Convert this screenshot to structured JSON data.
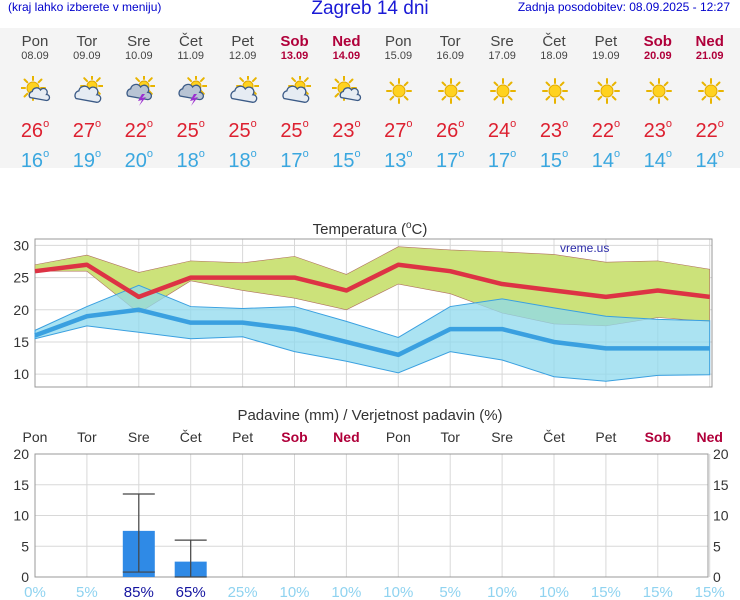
{
  "header": {
    "note": "(kraj lahko izberete v meniju)",
    "title": "Zagreb 14 dni",
    "updated": "Zadnja posodobitev: 08.09.2025 - 12:27"
  },
  "degree_symbol": "o",
  "days": [
    {
      "name": "Pon",
      "date": "08.09",
      "weekend": false,
      "icon": "sun-cloud-icon",
      "tmax": "26",
      "tmin": "16"
    },
    {
      "name": "Tor",
      "date": "09.09",
      "weekend": false,
      "icon": "cloud-sun-icon",
      "tmax": "27",
      "tmin": "19"
    },
    {
      "name": "Sre",
      "date": "10.09",
      "weekend": false,
      "icon": "thunderstorm-icon",
      "tmax": "22",
      "tmin": "20"
    },
    {
      "name": "Čet",
      "date": "11.09",
      "weekend": false,
      "icon": "thunderstorm-icon",
      "tmax": "25",
      "tmin": "18"
    },
    {
      "name": "Pet",
      "date": "12.09",
      "weekend": false,
      "icon": "cloud-sun-icon",
      "tmax": "25",
      "tmin": "18"
    },
    {
      "name": "Sob",
      "date": "13.09",
      "weekend": true,
      "icon": "cloud-sun-icon",
      "tmax": "25",
      "tmin": "17"
    },
    {
      "name": "Ned",
      "date": "14.09",
      "weekend": true,
      "icon": "sun-cloud-icon",
      "tmax": "23",
      "tmin": "15"
    },
    {
      "name": "Pon",
      "date": "15.09",
      "weekend": false,
      "icon": "sun-icon",
      "tmax": "27",
      "tmin": "13"
    },
    {
      "name": "Tor",
      "date": "16.09",
      "weekend": false,
      "icon": "sun-icon",
      "tmax": "26",
      "tmin": "17"
    },
    {
      "name": "Sre",
      "date": "17.09",
      "weekend": false,
      "icon": "sun-icon",
      "tmax": "24",
      "tmin": "17"
    },
    {
      "name": "Čet",
      "date": "18.09",
      "weekend": false,
      "icon": "sun-icon",
      "tmax": "23",
      "tmin": "15"
    },
    {
      "name": "Pet",
      "date": "19.09",
      "weekend": false,
      "icon": "sun-icon",
      "tmax": "22",
      "tmin": "14"
    },
    {
      "name": "Sob",
      "date": "20.09",
      "weekend": true,
      "icon": "sun-icon",
      "tmax": "23",
      "tmin": "14"
    },
    {
      "name": "Ned",
      "date": "21.09",
      "weekend": true,
      "icon": "sun-icon",
      "tmax": "22",
      "tmin": "14"
    }
  ],
  "colors": {
    "max_line": "#dd3344",
    "min_line": "#3aa0e0",
    "max_band": "#cce27a",
    "min_band": "#8fd9ee",
    "overlap": "#88cf8a",
    "bar": "#2f8ae6",
    "prob": "#1414a0",
    "prob_faint": "#8fd3f0",
    "weekend": "#b0003a"
  },
  "chart_data": [
    {
      "type": "line",
      "title": "Temperatura (",
      "title_unit": "C)",
      "watermark": "vreme.us",
      "ylim": [
        8,
        31
      ],
      "yticks": [
        10,
        15,
        20,
        25,
        30
      ],
      "series": [
        {
          "key": "max",
          "values": [
            26,
            27,
            22,
            25,
            25,
            25,
            23,
            27,
            26,
            24,
            23,
            22,
            23,
            22
          ],
          "band_upper": [
            27,
            28.5,
            25.8,
            27.6,
            27.3,
            28.3,
            25.5,
            29.8,
            29.3,
            29,
            28.6,
            27.4,
            27.6,
            26.3
          ],
          "band_lower": [
            26,
            26,
            19.5,
            24.5,
            23,
            21.8,
            20,
            24,
            22.5,
            19.5,
            17.8,
            17.5,
            18.8,
            18.2
          ]
        },
        {
          "key": "min",
          "values": [
            16,
            19,
            20,
            18,
            18,
            17,
            15,
            13,
            17,
            17,
            15,
            14,
            14,
            14
          ],
          "band_upper": [
            16.8,
            20.5,
            23.8,
            20.5,
            20.2,
            20.5,
            18.2,
            15.7,
            20.5,
            21.7,
            20.3,
            19,
            18.5,
            18.3
          ],
          "band_lower": [
            15.5,
            17.5,
            16.5,
            15.5,
            15.8,
            13.5,
            12,
            10.2,
            13.5,
            12.2,
            9.6,
            8.9,
            9.8,
            9.9
          ]
        }
      ]
    },
    {
      "type": "bar",
      "title": "Padavine (mm) / Verjetnost padavin (%)",
      "ylim": [
        0,
        20
      ],
      "yticks": [
        0,
        5,
        10,
        15,
        20
      ],
      "categories": [
        "Pon",
        "Tor",
        "Sre",
        "Čet",
        "Pet",
        "Sob",
        "Ned",
        "Pon",
        "Tor",
        "Sre",
        "Čet",
        "Pet",
        "Sob",
        "Ned"
      ],
      "weekend": [
        false,
        false,
        false,
        false,
        false,
        true,
        true,
        false,
        false,
        false,
        false,
        false,
        true,
        true
      ],
      "values": [
        0,
        0,
        7.5,
        2.5,
        0,
        0,
        0,
        0,
        0,
        0,
        0,
        0,
        0,
        0
      ],
      "err_high": [
        null,
        null,
        13.5,
        6,
        null,
        null,
        null,
        null,
        null,
        null,
        null,
        null,
        null,
        null
      ],
      "err_low": [
        null,
        null,
        0.8,
        0,
        null,
        null,
        null,
        null,
        null,
        null,
        null,
        null,
        null,
        null
      ],
      "probability": [
        "0%",
        "5%",
        "85%",
        "65%",
        "25%",
        "10%",
        "10%",
        "10%",
        "5%",
        "10%",
        "10%",
        "15%",
        "15%",
        "15%"
      ],
      "prob_strong": [
        false,
        false,
        true,
        true,
        false,
        false,
        false,
        false,
        false,
        false,
        false,
        false,
        false,
        false
      ]
    }
  ]
}
